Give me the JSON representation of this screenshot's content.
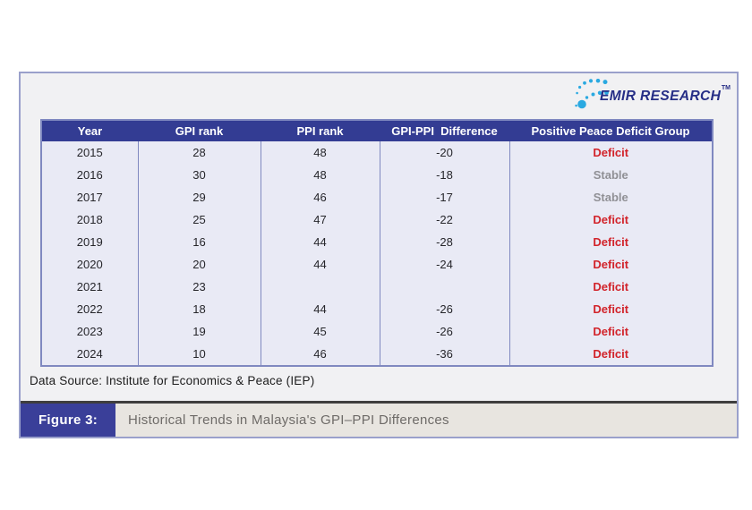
{
  "logo": {
    "text": "EMIR RESEARCH",
    "tm": "TM"
  },
  "table": {
    "headers": [
      "Year",
      "GPI rank",
      "PPI rank",
      "GPI-PPI  Difference",
      "Positive Peace Deficit Group"
    ],
    "rows": [
      {
        "year": "2015",
        "gpi_rank": "28",
        "ppi_rank": "48",
        "difference": "-20",
        "group": "Deficit"
      },
      {
        "year": "2016",
        "gpi_rank": "30",
        "ppi_rank": "48",
        "difference": "-18",
        "group": "Stable"
      },
      {
        "year": "2017",
        "gpi_rank": "29",
        "ppi_rank": "46",
        "difference": "-17",
        "group": "Stable"
      },
      {
        "year": "2018",
        "gpi_rank": "25",
        "ppi_rank": "47",
        "difference": "-22",
        "group": "Deficit"
      },
      {
        "year": "2019",
        "gpi_rank": "16",
        "ppi_rank": "44",
        "difference": "-28",
        "group": "Deficit"
      },
      {
        "year": "2020",
        "gpi_rank": "20",
        "ppi_rank": "44",
        "difference": "-24",
        "group": "Deficit"
      },
      {
        "year": "2021",
        "gpi_rank": "23",
        "ppi_rank": "",
        "difference": "",
        "group": "Deficit"
      },
      {
        "year": "2022",
        "gpi_rank": "18",
        "ppi_rank": "44",
        "difference": "-26",
        "group": "Deficit"
      },
      {
        "year": "2023",
        "gpi_rank": "19",
        "ppi_rank": "45",
        "difference": "-26",
        "group": "Deficit"
      },
      {
        "year": "2024",
        "gpi_rank": "10",
        "ppi_rank": "46",
        "difference": "-36",
        "group": "Deficit"
      }
    ]
  },
  "data_source": "Data Source: Institute for Economics & Peace (IEP)",
  "figure": {
    "label": "Figure 3:",
    "title": "Historical Trends in Malaysia's GPI–PPI Differences"
  },
  "colors": {
    "header_bg": "#333c93",
    "figure_label_bg": "#3a3f99",
    "deficit_red": "#d2232a",
    "stable_gray": "#909095",
    "body_lavender": "#e9eaf5",
    "frame_border": "#9aa0cb",
    "logo_dot_blue": "#2aa9e1",
    "logo_text_navy": "#262e86",
    "caption_beige": "#e8e5e0"
  }
}
